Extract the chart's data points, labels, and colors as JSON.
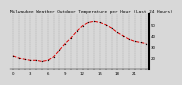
{
  "title": "Milwaukee Weather Outdoor Temperature per Hour (Last 24 Hours)",
  "hours": [
    0,
    1,
    2,
    3,
    4,
    5,
    6,
    7,
    8,
    9,
    10,
    11,
    12,
    13,
    14,
    15,
    16,
    17,
    18,
    19,
    20,
    21,
    22,
    23
  ],
  "temps": [
    22,
    20,
    19,
    18,
    18,
    17,
    18,
    21,
    27,
    33,
    38,
    44,
    49,
    52,
    53,
    52,
    50,
    47,
    43,
    40,
    37,
    35,
    34,
    33
  ],
  "line_color": "#dd0000",
  "marker_color": "#000000",
  "bg_color": "#d8d8d8",
  "plot_bg": "#d8d8d8",
  "grid_color": "#888888",
  "title_color": "#000000",
  "title_fontsize": 3.2,
  "ylim": [
    10,
    60
  ],
  "yticks": [
    20,
    30,
    40,
    50
  ],
  "tick_fontsize": 2.8,
  "right_spine_color": "#000000"
}
